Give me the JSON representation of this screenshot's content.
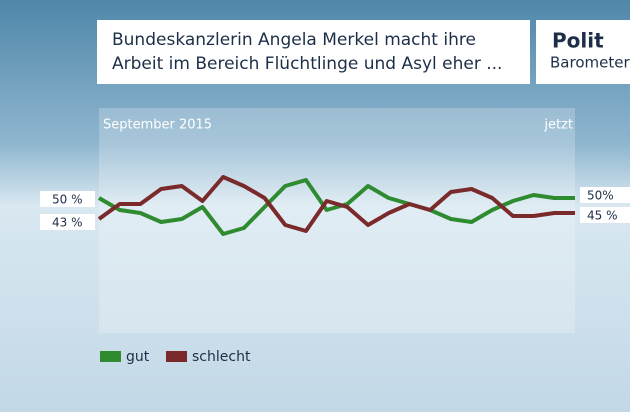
{
  "chart_data": {
    "type": "line",
    "title_lines": [
      "Bundeskanzlerin Angela Merkel macht ihre",
      "Arbeit im Bereich Flüchtlinge und Asyl eher ..."
    ],
    "logo": [
      "Polit",
      "Barometer"
    ],
    "x_start_label": "September 2015",
    "x_end_label": "jetzt",
    "ylim": [
      5,
      80
    ],
    "series": [
      {
        "name": "gut",
        "color": "#2e8b30",
        "values": [
          50,
          46,
          45,
          42,
          43,
          47,
          38,
          40,
          47,
          54,
          56,
          46,
          48,
          54,
          50,
          48,
          46,
          43,
          42,
          46,
          49,
          51,
          50,
          50
        ],
        "value_labels": [
          "50 %",
          null,
          null,
          null,
          null,
          null,
          null,
          null,
          null,
          null,
          null,
          null,
          null,
          null,
          null,
          null,
          null,
          null,
          null,
          null,
          null,
          null,
          null,
          "50%"
        ]
      },
      {
        "name": "schlecht",
        "color": "#7b2a2c",
        "values": [
          43,
          48,
          48,
          53,
          54,
          49,
          57,
          54,
          50,
          41,
          39,
          49,
          47,
          41,
          45,
          48,
          46,
          52,
          53,
          50,
          44,
          44,
          45,
          45
        ],
        "value_labels": [
          "43 %",
          null,
          null,
          null,
          null,
          null,
          null,
          null,
          null,
          null,
          null,
          null,
          null,
          null,
          null,
          null,
          null,
          null,
          null,
          null,
          null,
          null,
          null,
          "45 %"
        ]
      }
    ]
  }
}
